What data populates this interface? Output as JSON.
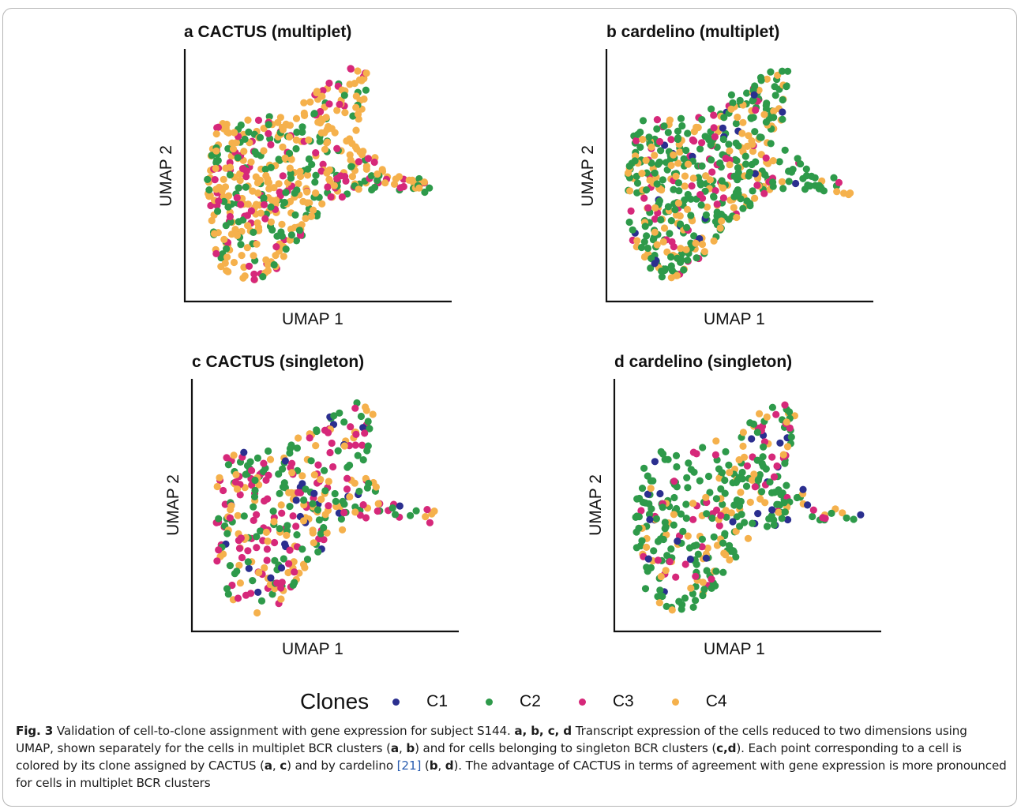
{
  "colors": {
    "C1": "#2b2f8f",
    "C2": "#2e9a4a",
    "C3": "#d6287a",
    "C4": "#f5b14c"
  },
  "legend": {
    "title": "Clones",
    "items": [
      "C1",
      "C2",
      "C3",
      "C4"
    ]
  },
  "chart_data": [
    {
      "type": "scatter",
      "panel": "a",
      "title": "a CACTUS (multiplet)",
      "xlabel": "UMAP 1",
      "ylabel": "UMAP 2",
      "grid": false,
      "weights": {
        "C1": 0.0,
        "C2": 0.28,
        "C3": 0.22,
        "C4": 0.5
      },
      "cells": 520
    },
    {
      "type": "scatter",
      "panel": "b",
      "title": "b cardelino (multiplet)",
      "xlabel": "UMAP 1",
      "ylabel": "UMAP 2",
      "grid": false,
      "weights": {
        "C1": 0.03,
        "C2": 0.56,
        "C3": 0.12,
        "C4": 0.29
      },
      "cells": 520
    },
    {
      "type": "scatter",
      "panel": "c",
      "title": "c CACTUS (singleton)",
      "xlabel": "UMAP 1",
      "ylabel": "UMAP 2",
      "grid": false,
      "weights": {
        "C1": 0.08,
        "C2": 0.34,
        "C3": 0.34,
        "C4": 0.24
      },
      "cells": 360
    },
    {
      "type": "scatter",
      "panel": "d",
      "title": "d cardelino (singleton)",
      "xlabel": "UMAP 1",
      "ylabel": "UMAP 2",
      "grid": false,
      "weights": {
        "C1": 0.05,
        "C2": 0.54,
        "C3": 0.14,
        "C4": 0.27
      },
      "cells": 360
    }
  ],
  "caption": {
    "fig_label": "Fig. 3",
    "parts": [
      {
        "t": " Validation of cell-to-clone assignment with gene expression for subject S144. ",
        "s": "n"
      },
      {
        "t": "a, b, c, d",
        "s": "b"
      },
      {
        "t": " Transcript expression of the cells reduced to two dimensions using UMAP, shown separately for the cells in multiplet BCR clusters (",
        "s": "n"
      },
      {
        "t": "a",
        "s": "b"
      },
      {
        "t": ", ",
        "s": "n"
      },
      {
        "t": "b",
        "s": "b"
      },
      {
        "t": ") and for cells belonging to singleton BCR clusters (",
        "s": "n"
      },
      {
        "t": "c,d",
        "s": "b"
      },
      {
        "t": "). Each point corresponding to a cell is colored by its clone assigned by CACTUS (",
        "s": "n"
      },
      {
        "t": "a",
        "s": "b"
      },
      {
        "t": ", ",
        "s": "n"
      },
      {
        "t": "c",
        "s": "b"
      },
      {
        "t": ") and by cardelino ",
        "s": "n"
      },
      {
        "t": "[21]",
        "s": "r"
      },
      {
        "t": " (",
        "s": "n"
      },
      {
        "t": "b",
        "s": "b"
      },
      {
        "t": ", ",
        "s": "n"
      },
      {
        "t": "d",
        "s": "b"
      },
      {
        "t": "). The advantage of CACTUS in terms of agreement with gene expression is more pronounced for cells in multiplet BCR clusters",
        "s": "n"
      }
    ]
  }
}
